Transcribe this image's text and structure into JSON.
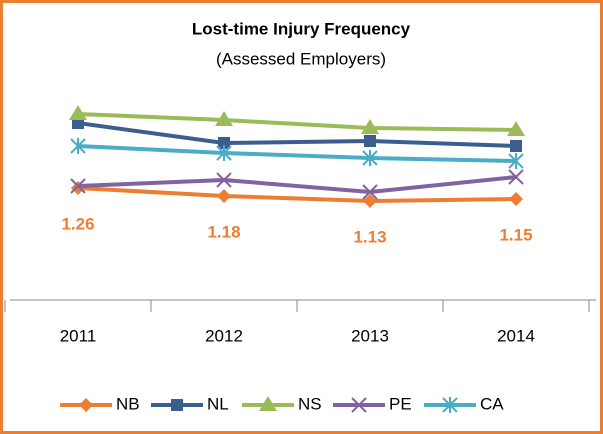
{
  "chart_data": {
    "type": "line",
    "title": "Lost-time Injury Frequency",
    "subtitle": "(Assessed Employers)",
    "categories": [
      "2011",
      "2012",
      "2013",
      "2014"
    ],
    "ylim": [
      0.14,
      2.54
    ],
    "series": [
      {
        "name": "NB",
        "color": "#ed7d31",
        "marker": "diamond",
        "values": [
          1.26,
          1.18,
          1.13,
          1.15
        ],
        "data_labels": true
      },
      {
        "name": "NL",
        "color": "#3a5f8f",
        "marker": "square",
        "values": [
          1.91,
          1.71,
          1.73,
          1.68
        ]
      },
      {
        "name": "NS",
        "color": "#9bbb59",
        "marker": "triangle",
        "values": [
          2.0,
          1.94,
          1.86,
          1.84
        ]
      },
      {
        "name": "PE",
        "color": "#8064a2",
        "marker": "x",
        "values": [
          1.28,
          1.34,
          1.22,
          1.37
        ]
      },
      {
        "name": "CA",
        "color": "#4bacc6",
        "marker": "asterisk",
        "values": [
          1.68,
          1.61,
          1.56,
          1.53
        ]
      }
    ],
    "legend": "bottom"
  }
}
